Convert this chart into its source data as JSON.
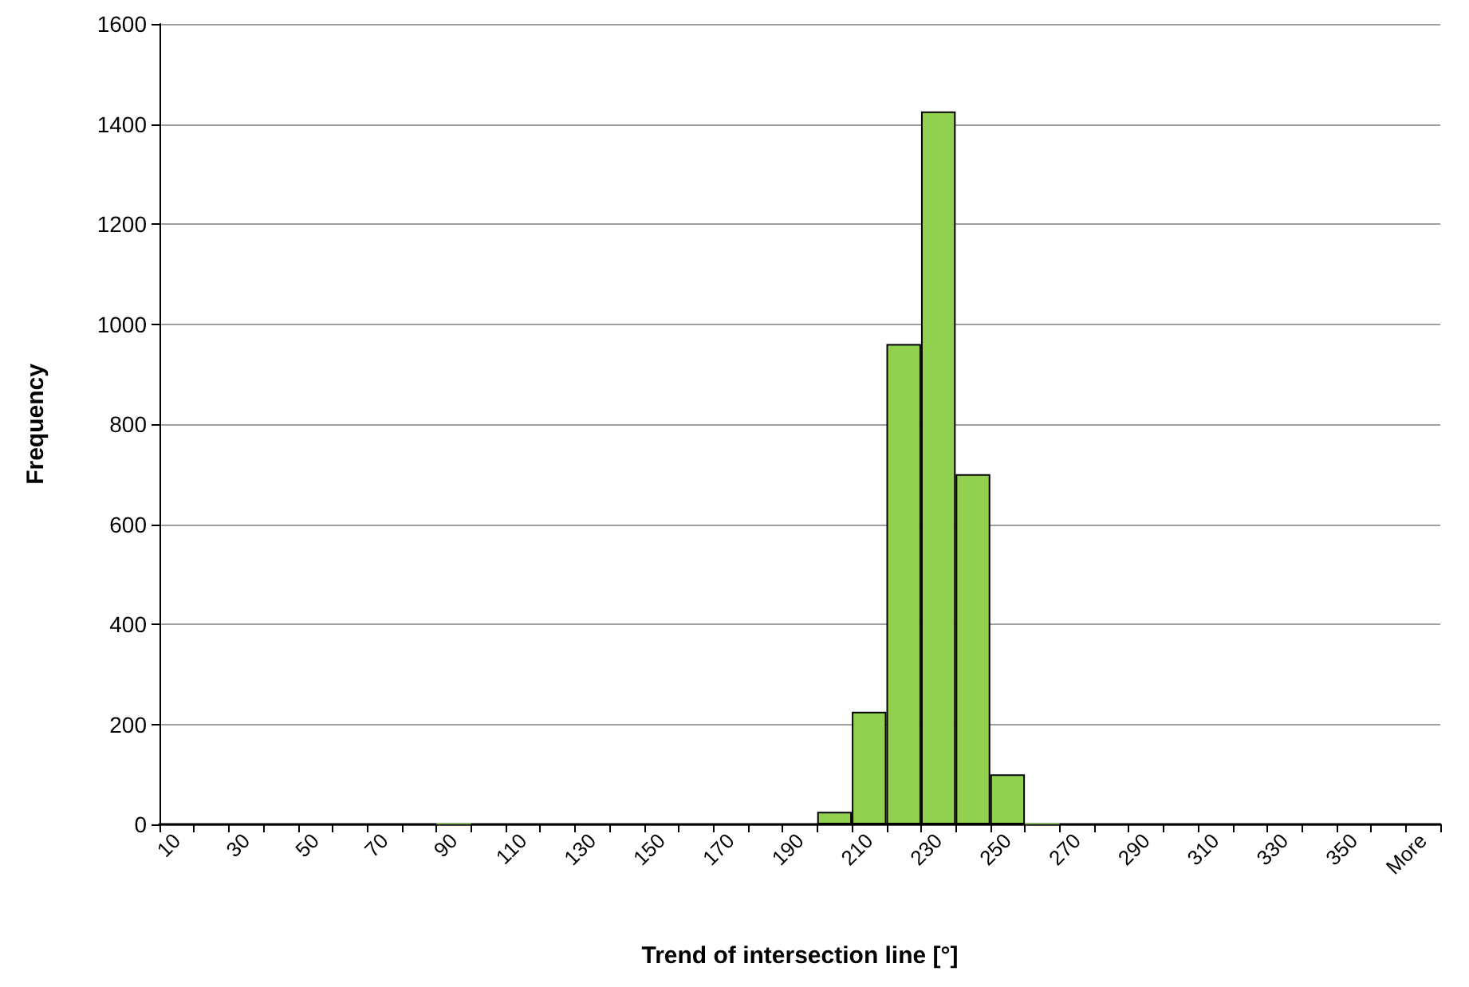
{
  "chart_data": {
    "type": "bar",
    "xlabel": "Trend of intersection line [°]",
    "ylabel": "Frequency",
    "categories": [
      "10",
      null,
      "30",
      null,
      "50",
      null,
      "70",
      null,
      "90",
      null,
      "110",
      null,
      "130",
      null,
      "150",
      null,
      "170",
      null,
      "190",
      null,
      "210",
      null,
      "230",
      null,
      "250",
      null,
      "270",
      null,
      "290",
      null,
      "310",
      null,
      "330",
      null,
      "350",
      null,
      "More"
    ],
    "values": [
      0,
      0,
      0,
      0,
      0,
      0,
      0,
      0,
      2,
      0,
      0,
      0,
      0,
      0,
      0,
      0,
      0,
      0,
      0,
      25,
      225,
      960,
      1425,
      700,
      100,
      2,
      0,
      0,
      0,
      0,
      0,
      0,
      0,
      0,
      0,
      0,
      0
    ],
    "color": "#92d050",
    "ylim": [
      0,
      1600
    ],
    "yticks": [
      0,
      200,
      400,
      600,
      800,
      1000,
      1200,
      1400,
      1600
    ],
    "grid": "y"
  }
}
